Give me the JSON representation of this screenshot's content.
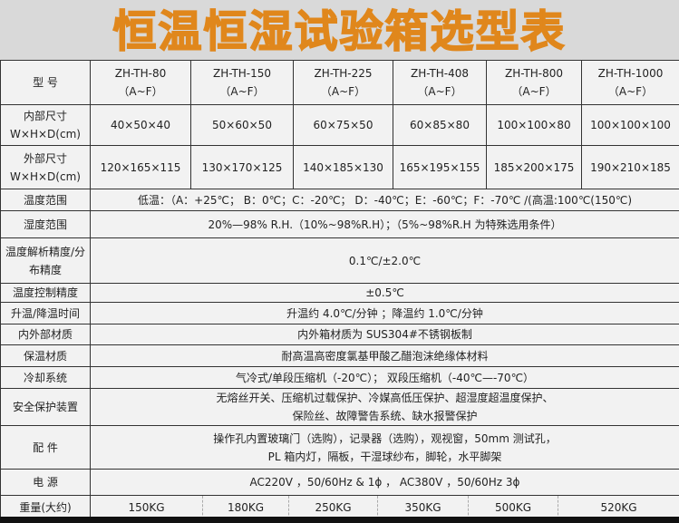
{
  "title": "恒温恒湿试验箱选型表",
  "header": {
    "label": "型 号",
    "models": [
      {
        "name": "ZH-TH-80",
        "sub": "（A~F）"
      },
      {
        "name": "ZH-TH-150",
        "sub": "（A~F）"
      },
      {
        "name": "ZH-TH-225",
        "sub": "（A~F）"
      },
      {
        "name": "ZH-TH-408",
        "sub": "（A~F）"
      },
      {
        "name": "ZH-TH-800",
        "sub": "（A~F）"
      },
      {
        "name": "ZH-TH-1000",
        "sub": "（A~F）"
      }
    ]
  },
  "inner": {
    "label1": "内部尺寸",
    "label2": "W×H×D(cm)",
    "values": [
      "40×50×40",
      "50×60×50",
      "60×75×50",
      "60×85×80",
      "100×100×80",
      "100×100×100"
    ]
  },
  "outer": {
    "label1": "外部尺寸",
    "label2": "W×H×D(cm)",
    "values": [
      "120×165×115",
      "130×170×125",
      "140×185×130",
      "165×195×155",
      "185×200×175",
      "190×210×185"
    ]
  },
  "rows": [
    {
      "label": "温度范围",
      "value": "低温：（A：+25℃； B：0℃；C：-20℃； D：-40℃；E：-60℃；F：-70℃ /(高温:100℃(150℃)"
    },
    {
      "label": "湿度范围",
      "value": "20%—98% R.H.（10%~98%R.H）；（5%~98%R.H 为特殊选用条件）"
    },
    {
      "label": "温度解析精度/分布精度",
      "value": "0.1℃/±2.0℃"
    },
    {
      "label": "温度控制精度",
      "value": "±0.5℃"
    },
    {
      "label": "升温/降温时间",
      "value": "升温约 4.0℃/分钟 ；降温约 1.0℃/分钟"
    },
    {
      "label": "内外部材质",
      "value": "内外箱材质为 SUS304#不锈钢板制"
    },
    {
      "label": "保温材质",
      "value": "耐高温高密度氯基甲酸乙醋泡沫绝缘体材料"
    },
    {
      "label": "冷却系统",
      "value": "气冷式/单段压缩机（-20℃）； 双段压缩机（-40℃—-70℃）"
    }
  ],
  "safety": {
    "label": "安全保护装置",
    "line1": "无熔丝开关、压缩机过载保护、冷媒高低压保护、超湿度超温度保护、",
    "line2": "保险丝、故障警告系统、缺水报警保护"
  },
  "parts": {
    "label": "配 件",
    "line1": "操作孔内置玻璃门（选购），记录器（选购），观视窗，50mm 测试孔，",
    "line2": "PL 箱内灯，隔板，干湿球纱布，脚轮，水平脚架"
  },
  "power": {
    "label": "电 源",
    "value": "AC220V ，50/60Hz & 1ϕ ， AC380V ，50/60Hz 3ϕ"
  },
  "weight": {
    "label": "重量(大约)",
    "values": [
      "150KG",
      "180KG",
      "250KG",
      "350KG",
      "500KG",
      "520KG"
    ]
  }
}
